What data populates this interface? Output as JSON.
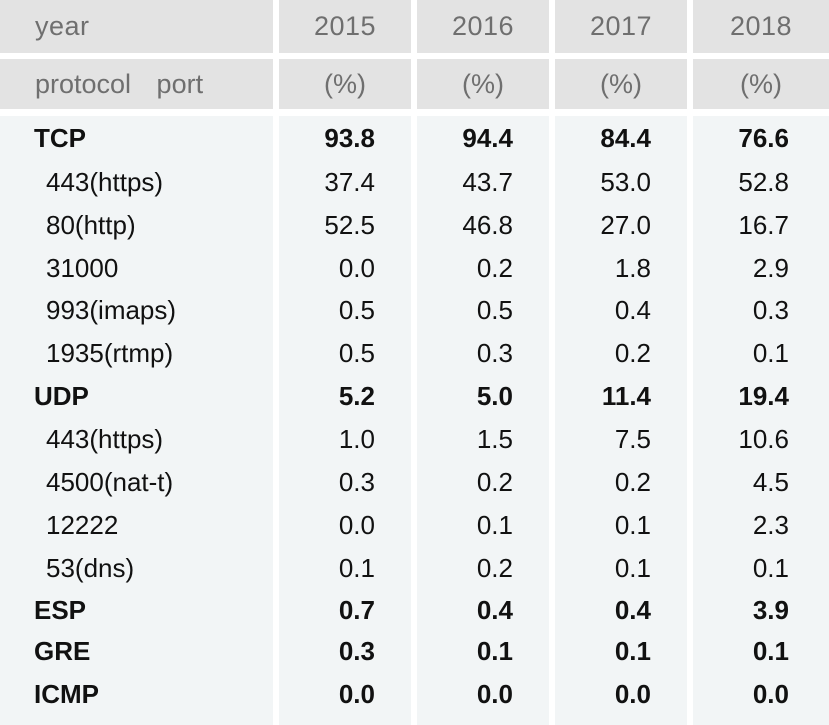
{
  "header": {
    "year_label": "year",
    "protocol_port_label": "protocol   port",
    "years": [
      "2015",
      "2016",
      "2017",
      "2018"
    ],
    "units": [
      "(%)",
      "(%)",
      "(%)",
      "(%)"
    ]
  },
  "rows": [
    {
      "name": "TCP",
      "bold": true,
      "values": [
        "93.8",
        "94.4",
        "84.4",
        "76.6"
      ]
    },
    {
      "name": "443(https)",
      "bold": false,
      "values": [
        "37.4",
        "43.7",
        "53.0",
        "52.8"
      ]
    },
    {
      "name": "80(http)",
      "bold": false,
      "values": [
        "52.5",
        "46.8",
        "27.0",
        "16.7"
      ]
    },
    {
      "name": "31000",
      "bold": false,
      "values": [
        "0.0",
        "0.2",
        "1.8",
        "2.9"
      ]
    },
    {
      "name": "993(imaps)",
      "bold": false,
      "values": [
        "0.5",
        "0.5",
        "0.4",
        "0.3"
      ]
    },
    {
      "name": "1935(rtmp)",
      "bold": false,
      "values": [
        "0.5",
        "0.3",
        "0.2",
        "0.1"
      ]
    },
    {
      "name": "UDP",
      "bold": true,
      "values": [
        "5.2",
        "5.0",
        "11.4",
        "19.4"
      ]
    },
    {
      "name": "443(https)",
      "bold": false,
      "values": [
        "1.0",
        "1.5",
        "7.5",
        "10.6"
      ]
    },
    {
      "name": "4500(nat-t)",
      "bold": false,
      "values": [
        "0.3",
        "0.2",
        "0.2",
        "4.5"
      ]
    },
    {
      "name": "12222",
      "bold": false,
      "values": [
        "0.0",
        "0.1",
        "0.1",
        "2.3"
      ]
    },
    {
      "name": "53(dns)",
      "bold": false,
      "values": [
        "0.1",
        "0.2",
        "0.1",
        "0.1"
      ]
    },
    {
      "name": "ESP",
      "bold": true,
      "values": [
        "0.7",
        "0.4",
        "0.4",
        "3.9"
      ]
    },
    {
      "name": "GRE",
      "bold": true,
      "values": [
        "0.3",
        "0.1",
        "0.1",
        "0.1"
      ]
    },
    {
      "name": "ICMP",
      "bold": true,
      "values": [
        "0.0",
        "0.0",
        "0.0",
        "0.0"
      ]
    }
  ]
}
